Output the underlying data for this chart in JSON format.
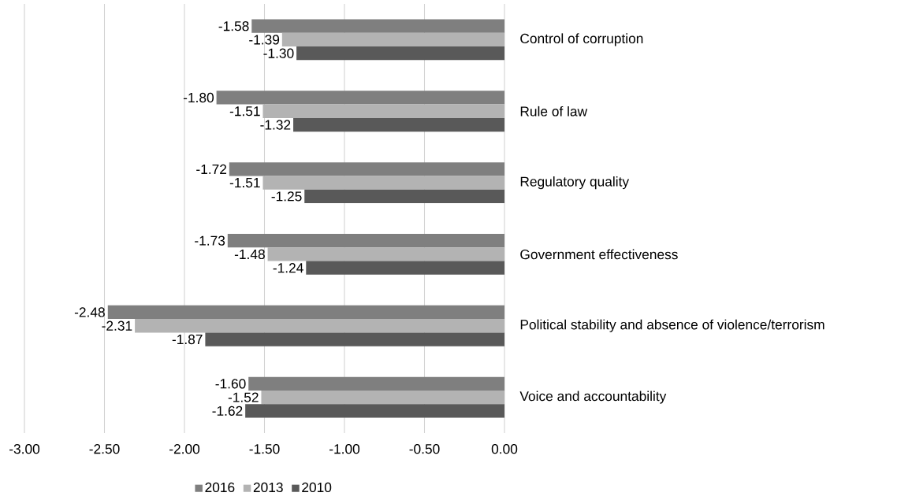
{
  "chart_data": {
    "type": "bar",
    "orientation": "horizontal",
    "categories": [
      "Control of corruption",
      "Rule of law",
      "Regulatory quality",
      "Government effectiveness",
      "Political stability and absence of violence/terrorism",
      "Voice and accountability"
    ],
    "series": [
      {
        "name": "2016",
        "color": "#7f7f7f",
        "values": [
          -1.58,
          -1.8,
          -1.72,
          -1.73,
          -2.48,
          -1.6
        ],
        "value_labels": [
          "-1.58",
          "-1.80",
          "-1.72",
          "-1.73",
          "-2.48",
          "-1.60"
        ]
      },
      {
        "name": "2013",
        "color": "#b3b3b3",
        "values": [
          -1.39,
          -1.51,
          -1.51,
          -1.48,
          -2.31,
          -1.52
        ],
        "value_labels": [
          "-1.39",
          "-1.51",
          "-1.51",
          "-1.48",
          "-2.31",
          "-1.52"
        ]
      },
      {
        "name": "2010",
        "color": "#595959",
        "values": [
          -1.3,
          -1.32,
          -1.25,
          -1.24,
          -1.87,
          -1.62
        ],
        "value_labels": [
          "-1.30",
          "-1.32",
          "-1.25",
          "-1.24",
          "-1.87",
          "-1.62"
        ]
      }
    ],
    "xlim": [
      -3,
      0
    ],
    "xticks": [
      {
        "value": -3,
        "label": "-3.00"
      },
      {
        "value": -2.5,
        "label": "-2.50"
      },
      {
        "value": -2,
        "label": "-2.00"
      },
      {
        "value": -1.5,
        "label": "-1.50"
      },
      {
        "value": -1,
        "label": "-1.00"
      },
      {
        "value": -0.5,
        "label": "-0.50"
      },
      {
        "value": 0,
        "label": "0.00"
      }
    ],
    "grid": "x",
    "legend": "bottom"
  }
}
